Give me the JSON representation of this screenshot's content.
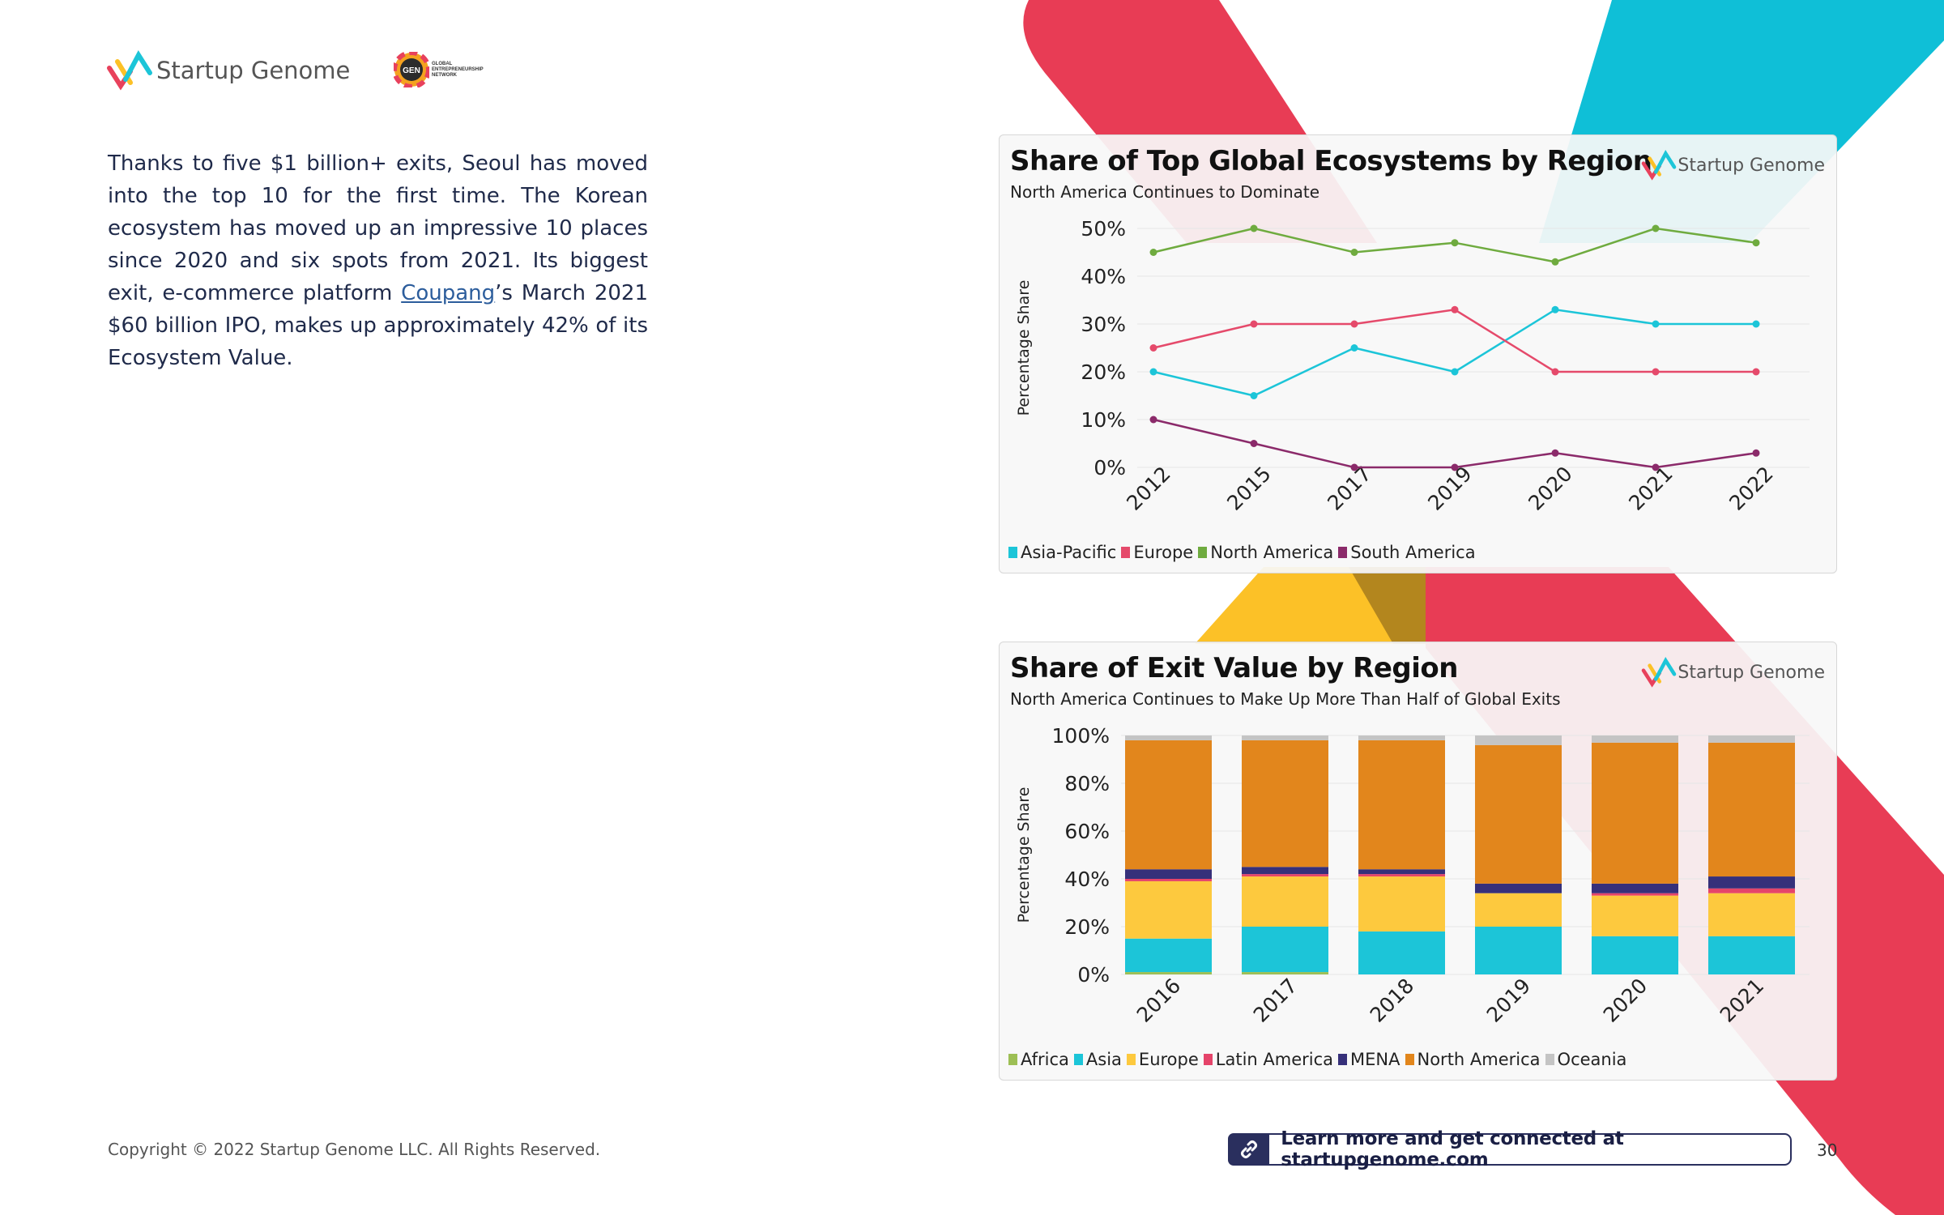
{
  "header": {
    "brand": "Startup Genome",
    "partner_text": "GLOBAL ENTREPRENEURSHIP NETWORK",
    "partner_badge": "GEN"
  },
  "intro": {
    "before_link": "Thanks to five $1 billion+ exits, Seoul has moved into the top 10 for the first time. The Korean ecosystem has moved up an impressive 10 places since 2020 and six spots from 2021. Its biggest exit, e-commerce platform ",
    "link_text": "Coupang",
    "after_link": "’s March 2021 $60 billion IPO, makes up approximately 42% of its Ecosystem Value."
  },
  "colors": {
    "asia": "#1cc5d8",
    "europe": "#e54a6b",
    "north_america": "#6fab3f",
    "south_america": "#8b2a6a",
    "africa": "#9dbf55",
    "asia_bar": "#1cc5d8",
    "europe_bar": "#fdc93e",
    "latin_america": "#e5446a",
    "mena": "#36307a",
    "north_america_bar": "#e2861c",
    "oceania": "#c4c4c4",
    "bg_red": "#e83c55",
    "bg_cyan": "#0fbfd7",
    "bg_yellow": "#fcc127"
  },
  "chart_data": [
    {
      "type": "line",
      "title": "Share of Top Global Ecosystems by Region",
      "subtitle": "North America Continues to Dominate",
      "brand": "Startup Genome",
      "xlabel": "",
      "ylabel": "Percentage Share",
      "x": [
        "2012",
        "2015",
        "2017",
        "2019",
        "2020",
        "2021",
        "2022"
      ],
      "ylim": [
        0,
        50
      ],
      "yticks": [
        "0%",
        "10%",
        "20%",
        "30%",
        "40%",
        "50%"
      ],
      "grid": true,
      "legend": "bottom-left",
      "series": [
        {
          "name": "Asia-Pacific",
          "color": "#1cc5d8",
          "values": [
            20,
            15,
            25,
            20,
            33,
            30,
            30
          ]
        },
        {
          "name": "Europe",
          "color": "#e54a6b",
          "values": [
            25,
            30,
            30,
            33,
            20,
            20,
            20
          ]
        },
        {
          "name": "North America",
          "color": "#6fab3f",
          "values": [
            45,
            50,
            45,
            47,
            43,
            50,
            47
          ]
        },
        {
          "name": "South America",
          "color": "#8b2a6a",
          "values": [
            10,
            5,
            0,
            0,
            3,
            0,
            3
          ]
        }
      ]
    },
    {
      "type": "bar",
      "stacked": true,
      "title": "Share of Exit Value by Region",
      "subtitle": "North America Continues to Make Up More Than Half of Global Exits",
      "brand": "Startup Genome",
      "xlabel": "",
      "ylabel": "Percentage Share",
      "categories": [
        "2016",
        "2017",
        "2018",
        "2019",
        "2020",
        "2021"
      ],
      "ylim": [
        0,
        100
      ],
      "yticks": [
        "0%",
        "20%",
        "40%",
        "60%",
        "80%",
        "100%"
      ],
      "grid": true,
      "legend": "bottom-left",
      "series": [
        {
          "name": "Africa",
          "color": "#9dbf55",
          "values": [
            1,
            1,
            0,
            0,
            0,
            0
          ]
        },
        {
          "name": "Asia",
          "color": "#1cc5d8",
          "values": [
            14,
            19,
            18,
            20,
            16,
            16
          ]
        },
        {
          "name": "Europe",
          "color": "#fdc93e",
          "values": [
            24,
            21,
            23,
            14,
            17,
            18
          ]
        },
        {
          "name": "Latin America",
          "color": "#e5446a",
          "values": [
            1,
            1,
            1,
            0,
            1,
            2
          ]
        },
        {
          "name": "MENA",
          "color": "#36307a",
          "values": [
            4,
            3,
            2,
            4,
            4,
            5
          ]
        },
        {
          "name": "North America",
          "color": "#e2861c",
          "values": [
            54,
            53,
            54,
            58,
            59,
            56
          ]
        },
        {
          "name": "Oceania",
          "color": "#c4c4c4",
          "values": [
            2,
            2,
            2,
            4,
            3,
            3
          ]
        }
      ]
    }
  ],
  "footer": {
    "copyright": "Copyright © 2022 Startup Genome LLC. All Rights Reserved.",
    "cta": "Learn more and get connected at startupgenome.com",
    "page_number": "30"
  }
}
